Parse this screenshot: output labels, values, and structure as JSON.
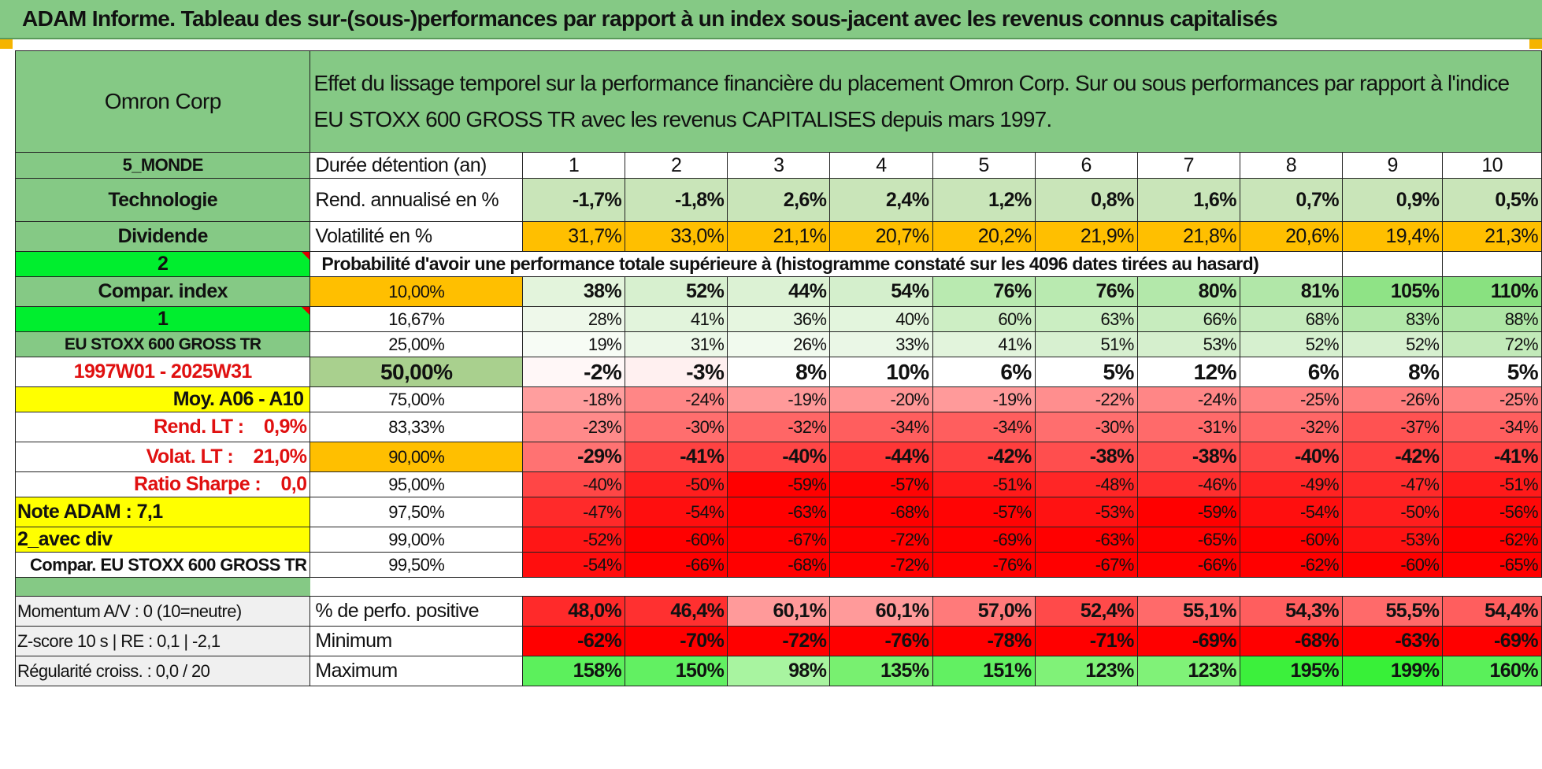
{
  "title": "ADAM Informe. Tableau des sur-(sous-)performances par rapport à un index sous-jacent avec les revenus connus capitalisés",
  "company": "Omron Corp",
  "description": "Effet du lissage temporel sur la performance financière du placement Omron Corp. Sur ou sous performances par rapport à l'indice EU STOXX 600 GROSS TR avec les revenus CAPITALISES depuis mars 1997.",
  "left_labels": {
    "region": "5_MONDE",
    "sector": "Technologie",
    "dividend": "Dividende",
    "num_2": "2",
    "compar_index": "Compar. index",
    "num_1": "1",
    "index_name": "EU STOXX 600 GROSS TR",
    "period": "1997W01 - 2025W31",
    "moy": "Moy. A06 - A10",
    "rend_lt": "Rend. LT :    0,9%",
    "volat_lt": "Volat. LT :    21,0%",
    "sharpe": "Ratio Sharpe :    0,0",
    "note": "Note ADAM : 7,1",
    "avec_div": "2_avec div",
    "compar_eu": "Compar. EU STOXX 600 GROSS TR"
  },
  "header_row": {
    "label": "Durée détention (an)",
    "years": [
      "1",
      "2",
      "3",
      "4",
      "5",
      "6",
      "7",
      "8",
      "9",
      "10"
    ]
  },
  "rend_row": {
    "label": "Rend. annualisé en %",
    "values": [
      "-1,7%",
      "-1,8%",
      "2,6%",
      "2,4%",
      "1,2%",
      "0,8%",
      "1,6%",
      "0,7%",
      "0,9%",
      "0,5%"
    ]
  },
  "vol_row": {
    "label": "Volatilité en %",
    "values": [
      "31,7%",
      "33,0%",
      "21,1%",
      "20,7%",
      "20,2%",
      "21,9%",
      "21,8%",
      "20,6%",
      "19,4%",
      "21,3%"
    ]
  },
  "probability_text": "Probabilité d'avoir une performance totale supérieure à (histogramme constaté sur les 4096 dates tirées au hasard)",
  "quantile_rows": [
    {
      "pct": "10,00%",
      "values": [
        "38%",
        "52%",
        "44%",
        "54%",
        "76%",
        "76%",
        "80%",
        "81%",
        "105%",
        "110%"
      ],
      "colors": [
        "#e3f4dc",
        "#d7f0cf",
        "#dcf2d4",
        "#d4efcc",
        "#b9eab0",
        "#b9eab0",
        "#b3e8aa",
        "#b1e7a8",
        "#8fe386",
        "#89e180"
      ]
    },
    {
      "pct": "16,67%",
      "values": [
        "28%",
        "41%",
        "36%",
        "40%",
        "60%",
        "63%",
        "66%",
        "68%",
        "83%",
        "88%"
      ],
      "colors": [
        "#eef8ea",
        "#e2f4dc",
        "#e6f6e0",
        "#e3f5dd",
        "#cdeec4",
        "#cbeec2",
        "#c7ecbe",
        "#c5ebbc",
        "#b3e8aa",
        "#aee6a5"
      ]
    },
    {
      "pct": "25,00%",
      "values": [
        "19%",
        "31%",
        "26%",
        "33%",
        "41%",
        "51%",
        "53%",
        "52%",
        "52%",
        "72%"
      ],
      "colors": [
        "#f7fcf5",
        "#ecf8e8",
        "#f1faee",
        "#eaf7e6",
        "#e2f4dc",
        "#d7f0d0",
        "#d5efcd",
        "#d6f0cf",
        "#d6f0cf",
        "#c2eab9"
      ]
    },
    {
      "pct": "50,00%",
      "values": [
        "-2%",
        "-3%",
        "8%",
        "10%",
        "6%",
        "5%",
        "12%",
        "6%",
        "8%",
        "5%"
      ],
      "colors": [
        "#fff7f7",
        "#fff0f0",
        "#ffffff",
        "#ffffff",
        "#ffffff",
        "#ffffff",
        "#ffffff",
        "#ffffff",
        "#ffffff",
        "#ffffff"
      ]
    },
    {
      "pct": "75,00%",
      "values": [
        "-18%",
        "-24%",
        "-19%",
        "-20%",
        "-19%",
        "-22%",
        "-24%",
        "-25%",
        "-26%",
        "-25%"
      ],
      "colors": [
        "#ff9e9e",
        "#ff8686",
        "#ff9a9a",
        "#ff9696",
        "#ff9a9a",
        "#ff8e8e",
        "#ff8686",
        "#ff8282",
        "#ff7e7e",
        "#ff8282"
      ]
    },
    {
      "pct": "83,33%",
      "values": [
        "-23%",
        "-30%",
        "-32%",
        "-34%",
        "-34%",
        "-30%",
        "-31%",
        "-32%",
        "-37%",
        "-34%"
      ],
      "colors": [
        "#ff8a8a",
        "#ff6e6e",
        "#ff6666",
        "#ff5e5e",
        "#ff5e5e",
        "#ff6e6e",
        "#ff6a6a",
        "#ff6666",
        "#ff5252",
        "#ff5e5e"
      ]
    },
    {
      "pct": "90,00%",
      "values": [
        "-29%",
        "-41%",
        "-40%",
        "-44%",
        "-42%",
        "-38%",
        "-38%",
        "-40%",
        "-42%",
        "-41%"
      ],
      "colors": [
        "#ff7272",
        "#ff4242",
        "#ff4646",
        "#ff3636",
        "#ff3e3e",
        "#ff4e4e",
        "#ff4e4e",
        "#ff4646",
        "#ff3e3e",
        "#ff4242"
      ]
    },
    {
      "pct": "95,00%",
      "values": [
        "-40%",
        "-50%",
        "-59%",
        "-57%",
        "-51%",
        "-48%",
        "-46%",
        "-49%",
        "-47%",
        "-51%"
      ],
      "colors": [
        "#ff4646",
        "#ff1e1e",
        "#ff0000",
        "#ff0404",
        "#ff1a1a",
        "#ff2626",
        "#ff2e2e",
        "#ff2222",
        "#ff2a2a",
        "#ff1a1a"
      ]
    },
    {
      "pct": "97,50%",
      "values": [
        "-47%",
        "-54%",
        "-63%",
        "-68%",
        "-57%",
        "-53%",
        "-59%",
        "-54%",
        "-50%",
        "-56%"
      ],
      "colors": [
        "#ff2a2a",
        "#ff0e0e",
        "#ff0000",
        "#ff0000",
        "#ff0404",
        "#ff1212",
        "#ff0000",
        "#ff0e0e",
        "#ff1e1e",
        "#ff0808"
      ]
    },
    {
      "pct": "99,00%",
      "values": [
        "-52%",
        "-60%",
        "-67%",
        "-72%",
        "-69%",
        "-63%",
        "-65%",
        "-60%",
        "-53%",
        "-62%"
      ],
      "colors": [
        "#ff1616",
        "#ff0000",
        "#ff0000",
        "#ff0000",
        "#ff0000",
        "#ff0000",
        "#ff0000",
        "#ff0000",
        "#ff1212",
        "#ff0000"
      ]
    },
    {
      "pct": "99,50%",
      "values": [
        "-54%",
        "-66%",
        "-68%",
        "-72%",
        "-76%",
        "-67%",
        "-66%",
        "-62%",
        "-60%",
        "-65%"
      ],
      "colors": [
        "#ff0e0e",
        "#ff0000",
        "#ff0000",
        "#ff0000",
        "#ff0000",
        "#ff0000",
        "#ff0000",
        "#ff0000",
        "#ff0000",
        "#ff0000"
      ]
    }
  ],
  "bottom_rows": [
    {
      "left": "Momentum A/V : 0 (10=neutre)",
      "label": "% de perfo. positive",
      "values": [
        "48,0%",
        "46,4%",
        "60,1%",
        "60,1%",
        "57,0%",
        "52,4%",
        "55,1%",
        "54,3%",
        "55,5%",
        "54,4%"
      ],
      "colors": [
        "#ff2a2a",
        "#ff3030",
        "#ff9a9a",
        "#ff9a9a",
        "#ff7a7a",
        "#ff4a4a",
        "#ff6a6a",
        "#ff5e5e",
        "#ff6a6a",
        "#ff5e5e"
      ]
    },
    {
      "left": "Z-score 10 s | RE : 0,1 | -2,1",
      "label": "Minimum",
      "values": [
        "-62%",
        "-70%",
        "-72%",
        "-76%",
        "-78%",
        "-71%",
        "-69%",
        "-68%",
        "-63%",
        "-69%"
      ],
      "colors": [
        "#ff0000",
        "#ff0000",
        "#ff0000",
        "#ff0000",
        "#ff0000",
        "#ff0000",
        "#ff0000",
        "#ff0000",
        "#ff0000",
        "#ff0000"
      ]
    },
    {
      "left": "Régularité croiss. : 0,0 / 20",
      "label": "Maximum",
      "values": [
        "158%",
        "150%",
        "98%",
        "135%",
        "151%",
        "123%",
        "123%",
        "195%",
        "199%",
        "160%"
      ],
      "colors": [
        "#5cf05c",
        "#62f062",
        "#a8f4a0",
        "#78f070",
        "#62f062",
        "#80f278",
        "#80f278",
        "#3cf03c",
        "#38f038",
        "#5af05a"
      ]
    }
  ],
  "colors": {
    "header_green": "#85c985",
    "light_green": "#c9e5b9",
    "orange": "#ffbf00",
    "bright_green": "#00ee2e",
    "yellow": "#ffff00",
    "red_text": "#e01010"
  }
}
